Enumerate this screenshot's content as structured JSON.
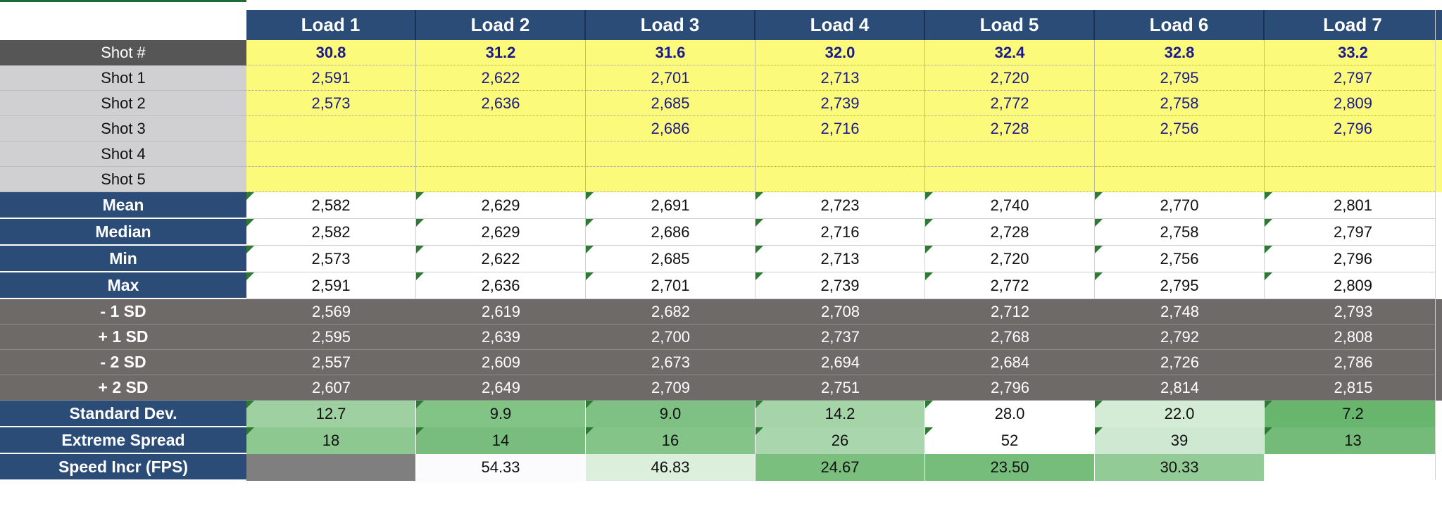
{
  "loads": [
    "Load 1",
    "Load 2",
    "Load 3",
    "Load 4",
    "Load 5",
    "Load 6",
    "Load 7"
  ],
  "shot_number": {
    "label": "Shot #",
    "values": [
      "30.8",
      "31.2",
      "31.6",
      "32.0",
      "32.4",
      "32.8",
      "33.2"
    ]
  },
  "shots": [
    {
      "label": "Shot 1",
      "values": [
        "2,591",
        "2,622",
        "2,701",
        "2,713",
        "2,720",
        "2,795",
        "2,797"
      ]
    },
    {
      "label": "Shot 2",
      "values": [
        "2,573",
        "2,636",
        "2,685",
        "2,739",
        "2,772",
        "2,758",
        "2,809"
      ]
    },
    {
      "label": "Shot 3",
      "values": [
        "",
        "",
        "2,686",
        "2,716",
        "2,728",
        "2,756",
        "2,796"
      ]
    },
    {
      "label": "Shot 4",
      "values": [
        "",
        "",
        "",
        "",
        "",
        "",
        ""
      ]
    },
    {
      "label": "Shot 5",
      "values": [
        "",
        "",
        "",
        "",
        "",
        "",
        ""
      ]
    }
  ],
  "summary": [
    {
      "label": "Mean",
      "values": [
        "2,582",
        "2,629",
        "2,691",
        "2,723",
        "2,740",
        "2,770",
        "2,801"
      ]
    },
    {
      "label": "Median",
      "values": [
        "2,582",
        "2,629",
        "2,686",
        "2,716",
        "2,728",
        "2,758",
        "2,797"
      ]
    },
    {
      "label": "Min",
      "values": [
        "2,573",
        "2,622",
        "2,685",
        "2,713",
        "2,720",
        "2,756",
        "2,796"
      ]
    },
    {
      "label": "Max",
      "values": [
        "2,591",
        "2,636",
        "2,701",
        "2,739",
        "2,772",
        "2,795",
        "2,809"
      ]
    }
  ],
  "sd_bands": [
    {
      "label": "- 1 SD",
      "values": [
        "2,569",
        "2,619",
        "2,682",
        "2,708",
        "2,712",
        "2,748",
        "2,793"
      ]
    },
    {
      "label": "+ 1 SD",
      "values": [
        "2,595",
        "2,639",
        "2,700",
        "2,737",
        "2,768",
        "2,792",
        "2,808"
      ]
    },
    {
      "label": "- 2 SD",
      "values": [
        "2,557",
        "2,609",
        "2,673",
        "2,694",
        "2,684",
        "2,726",
        "2,786"
      ]
    },
    {
      "label": "+ 2 SD",
      "values": [
        "2,607",
        "2,649",
        "2,709",
        "2,751",
        "2,796",
        "2,814",
        "2,815"
      ]
    }
  ],
  "stats": [
    {
      "label": "Standard Dev.",
      "values": [
        "12.7",
        "9.9",
        "9.0",
        "14.2",
        "28.0",
        "22.0",
        "7.2"
      ],
      "colors": [
        "#9ed0a2",
        "#82c386",
        "#7fc184",
        "#a6d4a9",
        "#ffffff",
        "#d4ebd5",
        "#68b56e"
      ]
    },
    {
      "label": "Extreme Spread",
      "values": [
        "18",
        "14",
        "16",
        "26",
        "52",
        "39",
        "13"
      ],
      "colors": [
        "#8cc890",
        "#78bd7d",
        "#84c488",
        "#a9d6ac",
        "#ffffff",
        "#cfe8d1",
        "#74bb79"
      ]
    },
    {
      "label": "Speed Incr (FPS)",
      "values": [
        "",
        "54.33",
        "46.83",
        "24.67",
        "23.50",
        "30.33",
        ""
      ],
      "colors": [
        "#7f7f7f",
        "#fbfbfe",
        "#dcefdd",
        "#7abf7e",
        "#76bd7b",
        "#93cb96",
        "#ffffff"
      ]
    }
  ]
}
